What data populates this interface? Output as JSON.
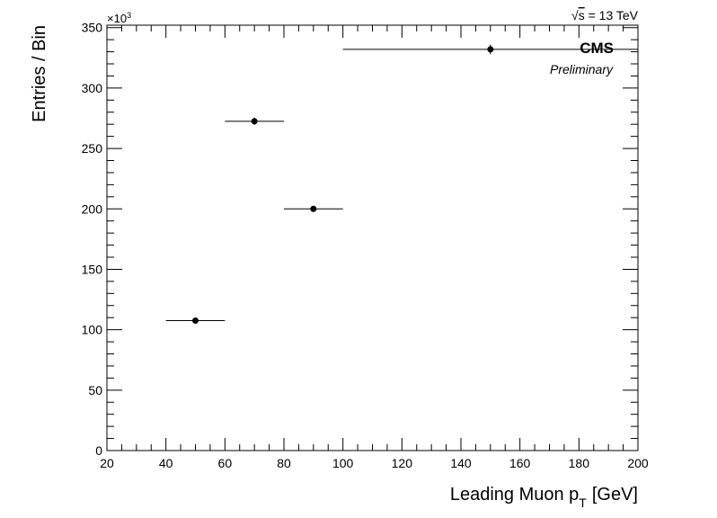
{
  "chart_data": {
    "type": "scatter",
    "xlabel": "Leading Muon p",
    "xlabel_subscript": "T",
    "xlabel_unit": "[GeV]",
    "ylabel": "Entries / Bin",
    "y_exponent": "×10",
    "y_exponent_power": "3",
    "energy_label": "= 13 TeV",
    "energy_sqrt_symbol": "√",
    "energy_sqrt_arg": "s",
    "experiment_label": "CMS",
    "status_label": "Preliminary",
    "xlim": [
      20,
      200
    ],
    "ylim": [
      0,
      352
    ],
    "x_ticks": [
      "20",
      "40",
      "60",
      "80",
      "100",
      "120",
      "140",
      "160",
      "180",
      "200"
    ],
    "y_ticks": [
      "0",
      "50",
      "100",
      "150",
      "200",
      "250",
      "300",
      "350"
    ],
    "grid": false,
    "points": [
      {
        "x": 50,
        "y": 107.5,
        "x_low": 40,
        "x_high": 60,
        "y_err": 0.6
      },
      {
        "x": 70,
        "y": 272.5,
        "x_low": 60,
        "x_high": 80,
        "y_err": 3
      },
      {
        "x": 90,
        "y": 200,
        "x_low": 80,
        "x_high": 100,
        "y_err": 2
      },
      {
        "x": 150,
        "y": 332,
        "x_low": 100,
        "x_high": 200,
        "y_err": 4
      }
    ]
  }
}
